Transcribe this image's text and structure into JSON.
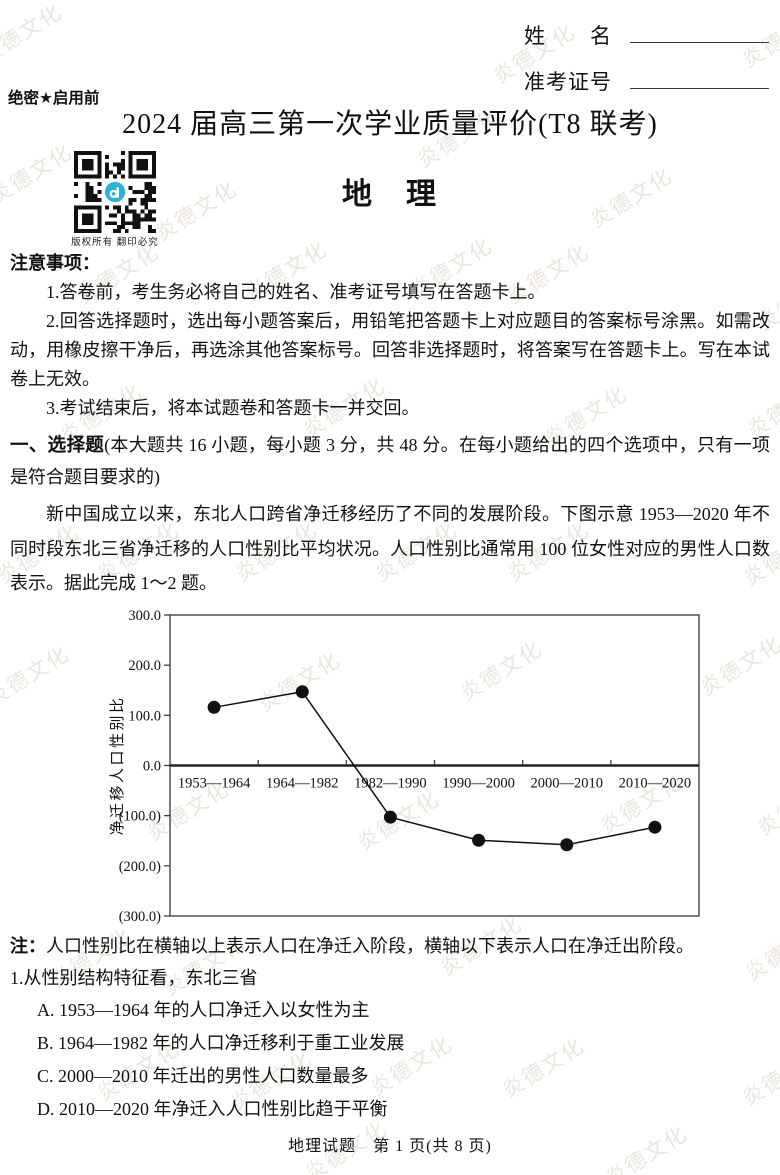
{
  "header": {
    "secrecy": "绝密★启用前",
    "name_label": "姓　　名",
    "exam_no_label": "准考证号",
    "main_title": "2024 届高三第一次学业质量评价(T8 联考)",
    "subject": "地　理",
    "qr_caption": "版权所有  翻印必究",
    "qr_logo_color": "#28b2dd"
  },
  "notice": {
    "heading": "注意事项：",
    "items": [
      "1.答卷前，考生务必将自己的姓名、准考证号填写在答题卡上。",
      "2.回答选择题时，选出每小题答案后，用铅笔把答题卡上对应题目的答案标号涂黑。如需改动，用橡皮擦干净后，再选涂其他答案标号。回答非选择题时，将答案写在答题卡上。写在本试卷上无效。",
      "3.考试结束后，将本试题卷和答题卡一并交回。"
    ]
  },
  "section": {
    "label": "一、选择题",
    "desc": "(本大题共 16 小题，每小题 3 分，共 48 分。在每小题给出的四个选项中，只有一项是符合题目要求的)"
  },
  "passage": "新中国成立以来，东北人口跨省净迁移经历了不同的发展阶段。下图示意 1953—2020 年不同时段东北三省净迁移的人口性别比平均状况。人口性别比通常用 100 位女性对应的男性人口数表示。据此完成 1～2 题。",
  "chart_data": {
    "type": "line",
    "categories": [
      "1953—1964",
      "1964—1982",
      "1982—1990",
      "1990—2000",
      "2000—2010",
      "2010—2020"
    ],
    "values": [
      116,
      147,
      -103,
      -149,
      -158,
      -123
    ],
    "ylabel": "净迁移人口性别比",
    "xlabel": "",
    "ylim": [
      -300,
      300
    ],
    "ytick_values": [
      300,
      200,
      100,
      0,
      -100,
      -200,
      -300
    ],
    "ytick_labels": [
      "300.0",
      "200.0",
      "100.0",
      "0.0",
      "(100.0)",
      "(200.0)",
      "(300.0)"
    ],
    "grid": false,
    "legend": false,
    "marker": "filled-circle",
    "line_color": "#111111"
  },
  "note": {
    "label": "注：",
    "text": "人口性别比在横轴以上表示人口在净迁入阶段，横轴以下表示人口在净迁出阶段。"
  },
  "question1": {
    "stem": "1.从性别结构特征看，东北三省",
    "options": [
      "A. 1953—1964 年的人口净迁入以女性为主",
      "B. 1964—1982 年的人口净迁移利于重工业发展",
      "C. 2000—2010 年迁出的男性人口数量最多",
      "D. 2010—2020 年净迁入人口性别比趋于平衡"
    ]
  },
  "footer": {
    "text": "地理试题　第 1 页(共 8 页)"
  },
  "watermark": {
    "text": "炎德文化",
    "color": "#ddd6c9"
  }
}
